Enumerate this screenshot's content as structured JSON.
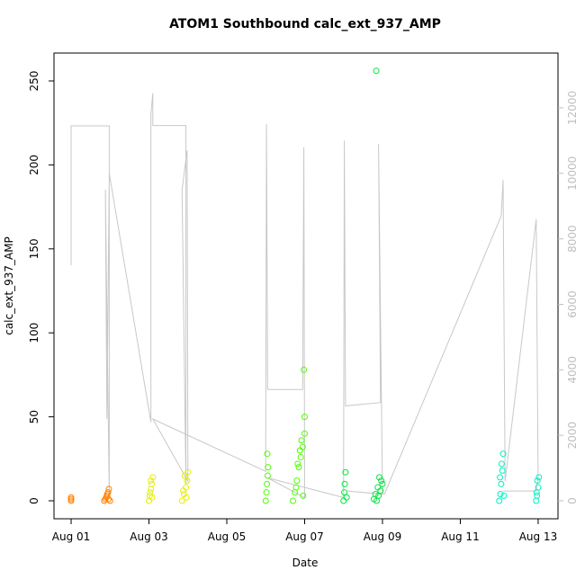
{
  "chart_data": {
    "type": "scatter",
    "title": "ATOM1 Southbound calc_ext_937_AMP",
    "x_label": "Date",
    "y_label": "calc_ext_937_AMP",
    "xlim": [
      0.56,
      13.51
    ],
    "ylim": [
      -10.7,
      266.6
    ],
    "y2lim": [
      -549,
      13674
    ],
    "xticks": [
      {
        "value": 1,
        "label": "Aug 01"
      },
      {
        "value": 3,
        "label": "Aug 03"
      },
      {
        "value": 5,
        "label": "Aug 05"
      },
      {
        "value": 7,
        "label": "Aug 07"
      },
      {
        "value": 9,
        "label": "Aug 09"
      },
      {
        "value": 11,
        "label": "Aug 11"
      },
      {
        "value": 13,
        "label": "Aug 13"
      }
    ],
    "yticks": [
      0,
      50,
      100,
      150,
      200,
      250
    ],
    "y2ticks": [
      0,
      2000,
      4000,
      6000,
      8000,
      10000,
      12000
    ],
    "y2_color": "#bebebe",
    "series": [
      {
        "type": "line",
        "axis": "y2",
        "color": "#c8c8c8",
        "x": [
          1,
          1,
          1.98,
          1.98,
          1.88,
          1.92,
          1.98,
          3.05,
          3.05,
          3.1,
          3.1,
          3.95,
          3.95,
          3.85,
          3.98,
          4.0,
          3.1,
          6.0,
          6.02,
          6.05,
          6.95,
          6.98,
          7.0,
          6.05,
          8.0,
          8.02,
          8.05,
          8.95,
          8.9,
          9.0,
          8.1,
          9.05,
          12.05,
          12.1,
          12.15,
          12.95,
          13.0,
          12.95,
          12.1
        ],
        "values": [
          7194,
          11450,
          11450,
          100,
          9500,
          2500,
          10000,
          2400,
          11800,
          12450,
          11460,
          11460,
          500,
          9500,
          10700,
          600,
          2500,
          900,
          11500,
          3400,
          3400,
          10800,
          100,
          700,
          100,
          11000,
          2900,
          3000,
          10900,
          200,
          300,
          200,
          8700,
          9800,
          600,
          8600,
          700,
          300,
          300
        ]
      },
      {
        "color": "#ff8000",
        "x": [
          1.0,
          1.0,
          1.0,
          1.85,
          1.88,
          1.9,
          1.92,
          1.95,
          1.97,
          2.0,
          1.93,
          1.96
        ],
        "values": [
          0,
          1,
          2,
          0,
          1,
          2,
          3,
          5,
          7,
          0,
          4,
          1
        ]
      },
      {
        "color": "#e5f000",
        "x": [
          3.0,
          3.02,
          3.05,
          3.07,
          3.1,
          3.05,
          3.03,
          3.08,
          3.85,
          3.9,
          3.95,
          3.98,
          4.0,
          3.92,
          3.88,
          3.96
        ],
        "values": [
          0,
          3,
          7,
          10,
          14,
          12,
          5,
          2,
          0,
          4,
          8,
          12,
          17,
          15,
          6,
          2
        ]
      },
      {
        "color": "#4cff00",
        "x": [
          6.0,
          6.02,
          6.03,
          6.05,
          6.06,
          6.04,
          6.7,
          6.75,
          6.8,
          6.85,
          6.9,
          6.95,
          7.0,
          7.0,
          6.98,
          6.92,
          6.88,
          6.82,
          6.78,
          6.96
        ],
        "values": [
          0,
          5,
          10,
          15,
          20,
          28,
          0,
          5,
          12,
          20,
          26,
          32,
          40,
          50,
          78,
          36,
          30,
          22,
          8,
          3
        ]
      },
      {
        "color": "#00e640",
        "x": [
          8.0,
          8.02,
          8.05,
          8.03,
          8.08,
          8.84,
          8.85,
          8.9,
          8.95,
          9.0,
          8.92,
          8.88,
          8.82,
          8.78,
          8.97
        ],
        "values": [
          0,
          5,
          17,
          10,
          2,
          256,
          0,
          3,
          6,
          10,
          14,
          8,
          4,
          1,
          12
        ]
      },
      {
        "color": "#00f0c0",
        "x": [
          12.0,
          12.03,
          12.05,
          12.08,
          12.1,
          12.12,
          12.06,
          12.02,
          12.95,
          12.97,
          13.0,
          13.02,
          12.98,
          12.96
        ],
        "values": [
          0,
          4,
          10,
          18,
          28,
          3,
          22,
          14,
          0,
          3,
          8,
          14,
          12,
          5
        ]
      }
    ]
  }
}
